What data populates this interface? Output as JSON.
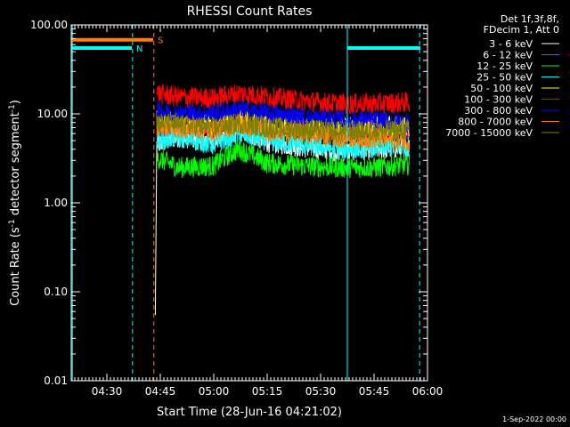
{
  "chart_data": {
    "type": "line",
    "title": "RHESSI Count Rates",
    "xlabel": "Start Time (28-Jun-16 04:21:02)",
    "ylabel_parts": [
      "Count Rate (s",
      "-1",
      " detector segment",
      "-1",
      ")"
    ],
    "ylog": true,
    "ylim": [
      0.01,
      100
    ],
    "xlim_minutes": [
      260,
      360
    ],
    "x_ticks": [
      {
        "label": "04:30",
        "minutes": 270
      },
      {
        "label": "04:45",
        "minutes": 285
      },
      {
        "label": "05:00",
        "minutes": 300
      },
      {
        "label": "05:15",
        "minutes": 315
      },
      {
        "label": "05:30",
        "minutes": 330
      },
      {
        "label": "05:45",
        "minutes": 345
      },
      {
        "label": "06:00",
        "minutes": 360
      }
    ],
    "y_ticks": [
      {
        "label": "0.01",
        "value": 0.01
      },
      {
        "label": "0.10",
        "value": 0.1
      },
      {
        "label": "1.00",
        "value": 1
      },
      {
        "label": "10.00",
        "value": 10
      },
      {
        "label": "100.00",
        "value": 100
      }
    ],
    "legend_header": [
      "Det 1f,3f,8f,",
      "FDecim 1, Att 0"
    ],
    "series": [
      {
        "name": "3 - 6 keV",
        "color": "#ffffff",
        "x": [
          284,
          290,
          300,
          307,
          315,
          325,
          335,
          345,
          355
        ],
        "y": [
          4.5,
          5.5,
          5.0,
          6.5,
          4.8,
          4.2,
          3.8,
          4.0,
          4.2
        ]
      },
      {
        "name": "6 - 12 keV",
        "color": "#ff00ff",
        "x": [
          284,
          290,
          300,
          307,
          315,
          325,
          335,
          345,
          355
        ],
        "y": [
          7.0,
          7.5,
          7.0,
          8.0,
          7.2,
          6.8,
          6.5,
          6.6,
          6.8
        ]
      },
      {
        "name": "12 - 25 keV",
        "color": "#00ff00",
        "x": [
          284,
          290,
          300,
          307,
          315,
          325,
          335,
          345,
          355
        ],
        "y": [
          3.2,
          2.5,
          2.6,
          4.0,
          2.8,
          2.6,
          2.5,
          2.5,
          2.7
        ]
      },
      {
        "name": "25 - 50 keV",
        "color": "#00ffff",
        "x": [
          284,
          290,
          300,
          307,
          315,
          325,
          335,
          345,
          355
        ],
        "y": [
          5.0,
          5.5,
          4.5,
          6.0,
          5.0,
          4.5,
          4.0,
          4.2,
          4.3
        ]
      },
      {
        "name": "50 - 100 keV",
        "color": "#ffff00",
        "x": [
          284,
          290,
          300,
          307,
          315,
          325,
          335,
          345,
          355
        ],
        "y": [
          8.5,
          8.0,
          7.5,
          8.5,
          7.5,
          7.0,
          7.0,
          7.2,
          7.3
        ]
      },
      {
        "name": "100 - 300 keV",
        "color": "#ff0000",
        "x": [
          284,
          290,
          300,
          307,
          315,
          325,
          335,
          345,
          355
        ],
        "y": [
          17.0,
          15.5,
          15.0,
          17.0,
          15.5,
          14.0,
          13.0,
          13.0,
          13.5
        ]
      },
      {
        "name": "300 - 800 keV",
        "color": "#0000ff",
        "x": [
          284,
          290,
          300,
          307,
          315,
          325,
          335,
          345,
          355
        ],
        "y": [
          11.0,
          10.0,
          10.0,
          11.0,
          10.0,
          9.0,
          8.5,
          8.3,
          8.0
        ]
      },
      {
        "name": "800 - 7000 keV",
        "color": "#ff8000",
        "x": [
          284,
          290,
          300,
          307,
          315,
          325,
          335,
          345,
          355
        ],
        "y": [
          7.0,
          7.0,
          6.5,
          7.5,
          6.5,
          6.0,
          5.5,
          5.3,
          5.0
        ]
      },
      {
        "name": "7000 - 15000 keV",
        "color": "#808000",
        "x": [
          284,
          290,
          300,
          307,
          315,
          325,
          335,
          345,
          355
        ],
        "y": [
          8.0,
          7.5,
          7.0,
          7.8,
          7.0,
          6.7,
          6.3,
          6.4,
          6.5
        ]
      }
    ],
    "flag_bars": [
      {
        "label": "S",
        "color": "#ff8000",
        "level": 68,
        "start": 260,
        "end": 283
      },
      {
        "label": "N",
        "color": "#00ffff",
        "level": 55,
        "start": 260,
        "end": 277
      },
      {
        "label": "",
        "color": "#00ffff",
        "level": 55,
        "start": 337.5,
        "end": 358
      }
    ],
    "marker_lines": [
      {
        "color": "#00ffff",
        "minutes": 260.3,
        "dashed": false
      },
      {
        "color": "#00ffff",
        "minutes": 337.5,
        "dashed": false
      },
      {
        "color": "#00ffff",
        "minutes": 277.2,
        "dashed": true
      },
      {
        "color": "#00ffff",
        "minutes": 357.8,
        "dashed": true
      },
      {
        "color": "#ff8000",
        "minutes": 283.2,
        "dashed": true
      }
    ],
    "grid": false
  },
  "footer_date": "1-Sep-2022 00:00"
}
